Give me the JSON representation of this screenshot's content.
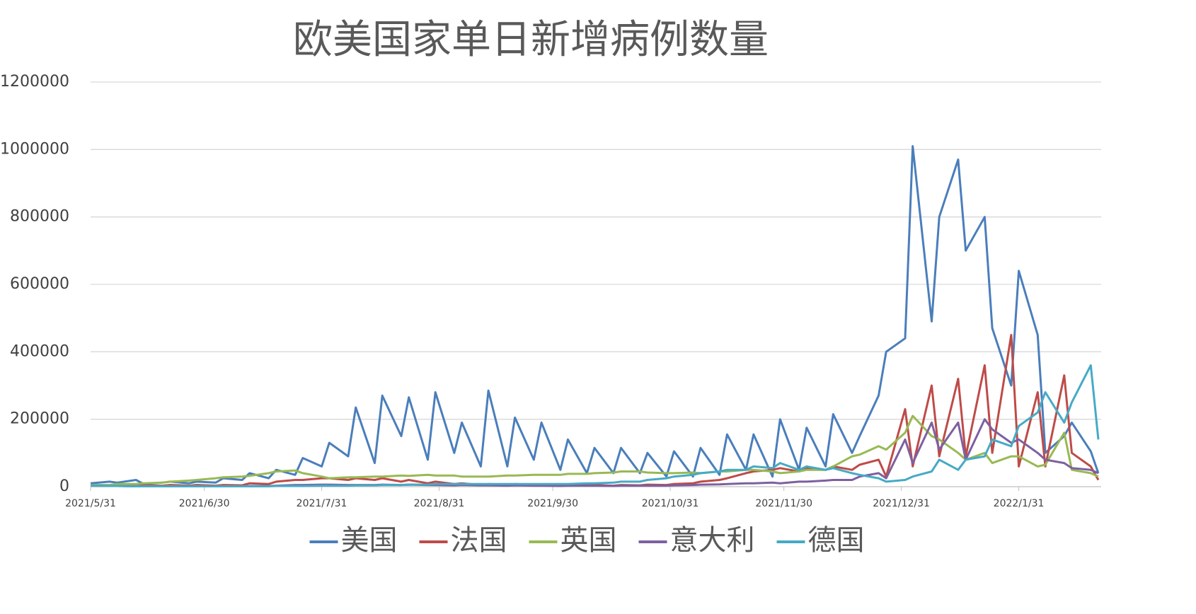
{
  "chart_data": {
    "type": "line",
    "title": "欧美国家单日新增病例数量",
    "x": [
      "2021/5/31",
      "2021/6/5",
      "2021/6/7",
      "2021/6/12",
      "2021/6/14",
      "2021/6/19",
      "2021/6/21",
      "2021/6/26",
      "2021/6/28",
      "2021/7/3",
      "2021/7/5",
      "2021/7/10",
      "2021/7/12",
      "2021/7/17",
      "2021/7/19",
      "2021/7/24",
      "2021/7/26",
      "2021/7/31",
      "2021/8/2",
      "2021/8/7",
      "2021/8/9",
      "2021/8/14",
      "2021/8/16",
      "2021/8/21",
      "2021/8/23",
      "2021/8/28",
      "2021/8/30",
      "2021/9/4",
      "2021/9/6",
      "2021/9/11",
      "2021/9/13",
      "2021/9/18",
      "2021/9/20",
      "2021/9/25",
      "2021/9/27",
      "2021/10/2",
      "2021/10/4",
      "2021/10/9",
      "2021/10/11",
      "2021/10/16",
      "2021/10/18",
      "2021/10/23",
      "2021/10/25",
      "2021/10/30",
      "2021/11/1",
      "2021/11/6",
      "2021/11/8",
      "2021/11/13",
      "2021/11/15",
      "2021/11/20",
      "2021/11/22",
      "2021/11/27",
      "2021/11/29",
      "2021/12/4",
      "2021/12/6",
      "2021/12/11",
      "2021/12/13",
      "2021/12/18",
      "2021/12/20",
      "2021/12/25",
      "2021/12/27",
      "2022/1/1",
      "2022/1/3",
      "2022/1/8",
      "2022/1/10",
      "2022/1/15",
      "2022/1/17",
      "2022/1/22",
      "2022/1/24",
      "2022/1/29",
      "2022/1/31",
      "2022/2/5",
      "2022/2/7",
      "2022/2/12",
      "2022/2/14",
      "2022/2/19",
      "2022/2/21"
    ],
    "series": [
      {
        "name": "美国",
        "color": "#4a7ebb",
        "values": [
          10000,
          15000,
          12000,
          20000,
          8000,
          12000,
          15000,
          10000,
          15000,
          12000,
          25000,
          20000,
          40000,
          25000,
          50000,
          35000,
          85000,
          60000,
          130000,
          90000,
          235000,
          70000,
          270000,
          150000,
          265000,
          80000,
          280000,
          100000,
          190000,
          60000,
          285000,
          60000,
          205000,
          80000,
          190000,
          50000,
          140000,
          40000,
          115000,
          40000,
          115000,
          40000,
          100000,
          30000,
          105000,
          30000,
          115000,
          35000,
          155000,
          50000,
          155000,
          30000,
          200000,
          50000,
          175000,
          60000,
          215000,
          100000,
          150000,
          270000,
          400000,
          440000,
          1010000,
          490000,
          800000,
          970000,
          700000,
          800000,
          470000,
          300000,
          640000,
          450000,
          100000,
          150000,
          190000,
          105000,
          40000
        ]
      },
      {
        "name": "法国",
        "color": "#be4b48",
        "values": [
          5000,
          3000,
          5000,
          3000,
          4000,
          3000,
          5000,
          3000,
          5000,
          3000,
          5000,
          4000,
          10000,
          8000,
          15000,
          20000,
          20000,
          25000,
          25000,
          20000,
          25000,
          20000,
          25000,
          15000,
          20000,
          10000,
          15000,
          8000,
          10000,
          5000,
          8000,
          5000,
          8000,
          5000,
          6000,
          4000,
          6000,
          4000,
          5000,
          3000,
          5000,
          4000,
          6000,
          5000,
          8000,
          10000,
          15000,
          20000,
          25000,
          40000,
          45000,
          50000,
          55000,
          45000,
          55000,
          50000,
          60000,
          50000,
          65000,
          80000,
          30000,
          230000,
          60000,
          300000,
          90000,
          320000,
          90000,
          360000,
          100000,
          450000,
          60000,
          280000,
          60000,
          330000,
          100000,
          60000,
          20000
        ]
      },
      {
        "name": "英国",
        "color": "#98b954",
        "values": [
          5000,
          5000,
          8000,
          8000,
          10000,
          12000,
          15000,
          18000,
          20000,
          25000,
          28000,
          30000,
          32000,
          40000,
          45000,
          48000,
          40000,
          30000,
          25000,
          28000,
          28000,
          30000,
          30000,
          33000,
          32000,
          35000,
          33000,
          33000,
          30000,
          30000,
          30000,
          33000,
          33000,
          35000,
          35000,
          35000,
          38000,
          38000,
          40000,
          42000,
          45000,
          45000,
          42000,
          40000,
          40000,
          42000,
          40000,
          45000,
          45000,
          50000,
          50000,
          45000,
          40000,
          45000,
          50000,
          50000,
          60000,
          90000,
          95000,
          120000,
          110000,
          160000,
          210000,
          150000,
          140000,
          100000,
          80000,
          100000,
          70000,
          90000,
          90000,
          60000,
          65000,
          160000,
          50000,
          40000,
          30000
        ]
      },
      {
        "name": "意大利",
        "color": "#7d60a0",
        "values": [
          3000,
          2000,
          2000,
          1000,
          1000,
          1000,
          1000,
          1000,
          1000,
          1000,
          1000,
          1000,
          2000,
          2000,
          3000,
          5000,
          5000,
          6000,
          6000,
          5000,
          5000,
          5000,
          6000,
          5000,
          6000,
          5000,
          5000,
          4000,
          5000,
          4000,
          4000,
          3000,
          4000,
          3000,
          3000,
          2000,
          3000,
          3000,
          3000,
          2000,
          3000,
          3000,
          3000,
          3000,
          4000,
          5000,
          6000,
          7000,
          8000,
          10000,
          10000,
          12000,
          10000,
          15000,
          15000,
          18000,
          20000,
          20000,
          30000,
          40000,
          25000,
          140000,
          70000,
          190000,
          110000,
          190000,
          80000,
          200000,
          170000,
          130000,
          140000,
          100000,
          80000,
          70000,
          55000,
          50000,
          40000
        ]
      },
      {
        "name": "德国",
        "color": "#46aac5",
        "values": [
          3000,
          2000,
          2000,
          1000,
          1000,
          1000,
          1000,
          1000,
          1000,
          1000,
          1000,
          1000,
          1000,
          1000,
          2000,
          2000,
          2000,
          3000,
          3000,
          3000,
          4000,
          4000,
          5000,
          5000,
          6000,
          6000,
          8000,
          8000,
          8000,
          8000,
          8000,
          8000,
          8000,
          8000,
          8000,
          8000,
          8000,
          10000,
          10000,
          12000,
          15000,
          15000,
          20000,
          25000,
          30000,
          35000,
          40000,
          45000,
          50000,
          50000,
          60000,
          55000,
          70000,
          50000,
          60000,
          50000,
          55000,
          40000,
          35000,
          25000,
          15000,
          20000,
          30000,
          45000,
          80000,
          50000,
          80000,
          90000,
          140000,
          120000,
          180000,
          220000,
          280000,
          190000,
          250000,
          360000,
          140000
        ]
      }
    ],
    "xlim": [
      "2021/5/31",
      "2022/2/21"
    ],
    "xticks": [
      "2021/5/31",
      "2021/6/30",
      "2021/7/31",
      "2021/8/31",
      "2021/9/30",
      "2021/10/31",
      "2021/11/30",
      "2021/12/31",
      "2022/1/31"
    ],
    "ylim": [
      0,
      1200000
    ],
    "yticks": [
      0,
      200000,
      400000,
      600000,
      800000,
      1000000,
      1200000
    ],
    "grid": true,
    "legend": "bottom"
  }
}
